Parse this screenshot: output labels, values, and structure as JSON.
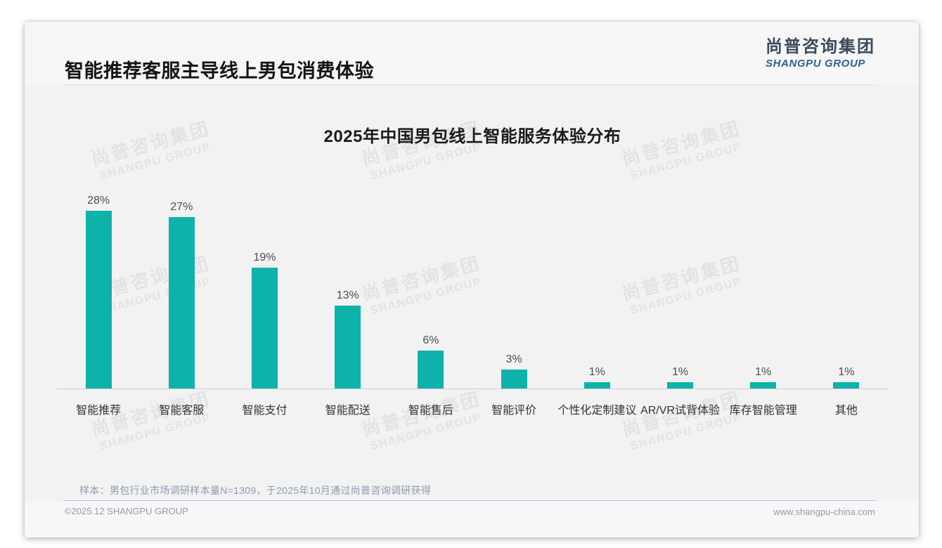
{
  "header": {
    "title": "智能推荐客服主导线上男包消费体验",
    "logo": {
      "zh": "尚普咨询集团",
      "en": "SHANGPU GROUP"
    }
  },
  "watermark": {
    "zh": "尚普咨询集团",
    "en": "SHANGPU GROUP"
  },
  "chart_data": {
    "type": "bar",
    "title": "2025年中国男包线上智能服务体验分布",
    "categories": [
      "智能推荐",
      "智能客服",
      "智能支付",
      "智能配送",
      "智能售后",
      "智能评价",
      "个性化定制建议",
      "AR/VR试背体验",
      "库存智能管理",
      "其他"
    ],
    "values": [
      28,
      27,
      19,
      13,
      6,
      3,
      1,
      1,
      1,
      1
    ],
    "unit": "%",
    "bar_color": "#0db2aa",
    "ylim": [
      0,
      30
    ],
    "grid": false,
    "legend": "none",
    "value_labels_shown": true
  },
  "note": "样本：男包行业市场调研样本量N=1309，于2025年10月通过尚普咨询调研获得",
  "footer": {
    "left": "©2025.12 SHANGPU GROUP",
    "right": "www.shangpu-china.com"
  },
  "colors": {
    "bar": "#0db2aa",
    "card_background": "#f2f2f3",
    "axis_line": "#cfd0d2",
    "note_text": "#8b9cb3",
    "logo_blue": "#2e6094"
  }
}
